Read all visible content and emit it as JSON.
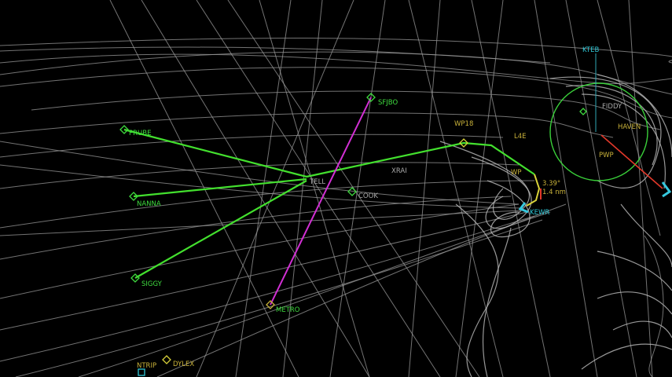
{
  "labels": {
    "ktee": "KTEB",
    "sfjbo": "SFJBO",
    "wp18": "WP18",
    "prube": "PRUBE",
    "nanna": "NANNA",
    "siggy": "SIGGY",
    "metro": "METRO",
    "kewr": "KEWR",
    "dylex": "DYLEX",
    "ntrip": "NTRIP",
    "tell": "TELL",
    "xrai": "XRAI",
    "cook": "COOK",
    "fiddy": "FIDDY",
    "haven": "HAVEN",
    "pwp": "PWP",
    "l4e": "L4E",
    "wp_small": "WP",
    "hdg": "3.39°",
    "dist": "1.4 nm"
  },
  "colors": {
    "background": "#000000",
    "track": "#9a9a9a",
    "route_green": "#43e02e",
    "route_magenta": "#d22fd4",
    "route_yellow": "#d8d23a",
    "runway_cyan": "#35c8de",
    "red_leg": "#e2382a",
    "label_green": "#3fdc3f",
    "label_yellow": "#c9b23a"
  },
  "icons": [
    "waypoint-diamond-icon",
    "airport-runway-icon",
    "range-ring-icon"
  ]
}
